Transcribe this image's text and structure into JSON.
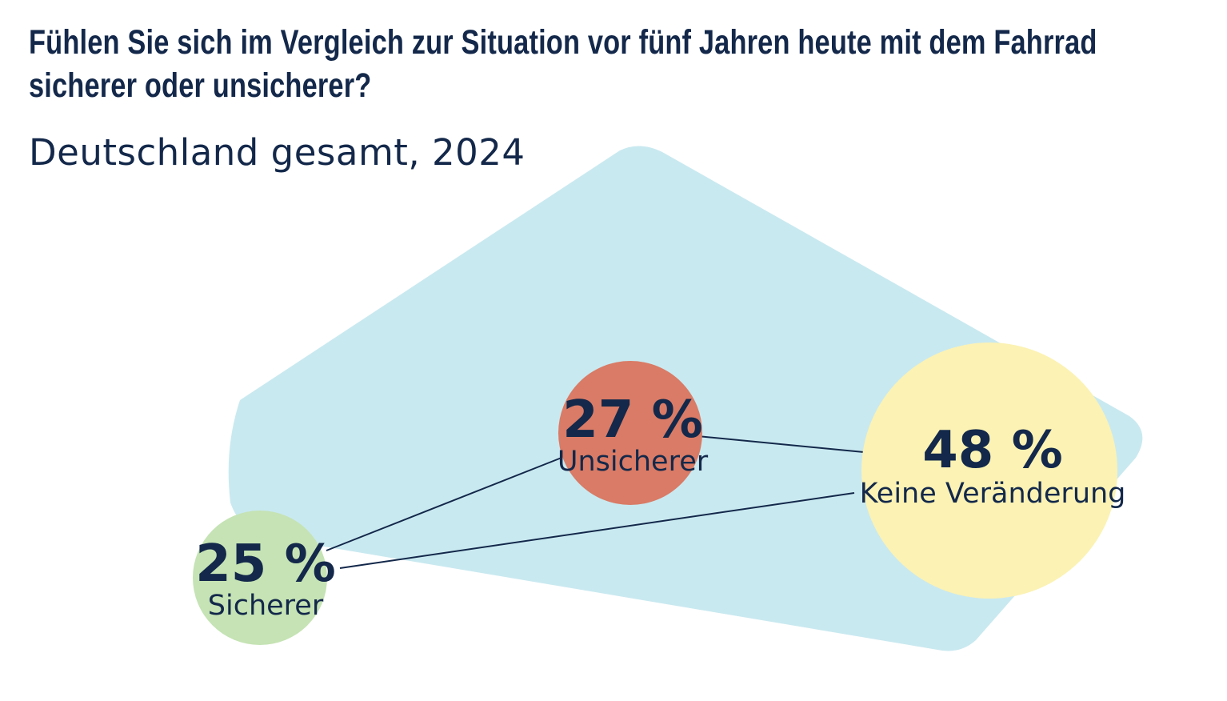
{
  "title": "Fühlen Sie sich im Vergleich zur Situation vor fünf Jahren heute mit dem Fahrrad sicherer oder unsicherer?",
  "subtitle": "Deutschland gesamt, 2024",
  "colors": {
    "text": "#13284a",
    "background_shape": "#c9e9f0",
    "sicherer": "#c5e3b4",
    "unsicherer": "#d97b66",
    "keine_veraenderung": "#fbf2b4"
  },
  "chart_data": {
    "type": "bubble",
    "title": "Fühlen Sie sich im Vergleich zur Situation vor fünf Jahren heute mit dem Fahrrad sicherer oder unsicherer?",
    "subtitle": "Deutschland gesamt, 2024",
    "unit": "%",
    "items": [
      {
        "key": "sicherer",
        "label": "Sicherer",
        "value": 25,
        "value_label": "25 %",
        "color": "#c5e3b4"
      },
      {
        "key": "unsicherer",
        "label": "Unsicherer",
        "value": 27,
        "value_label": "27 %",
        "color": "#d97b66"
      },
      {
        "key": "keine_veraenderung",
        "label": "Keine Veränderung",
        "value": 48,
        "value_label": "48 %",
        "color": "#fbf2b4"
      }
    ]
  }
}
